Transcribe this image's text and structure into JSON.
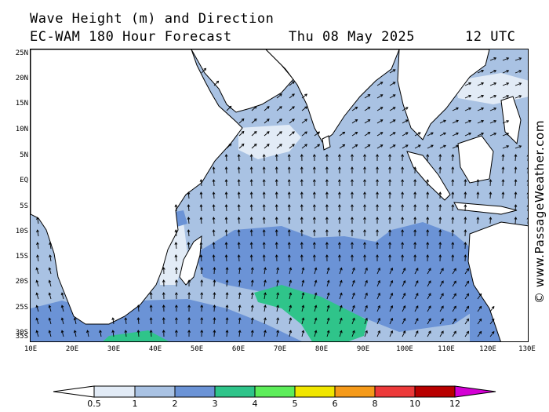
{
  "title": {
    "line1": "Wave Height (m) and Direction",
    "model": "EC-WAM 180 Hour Forecast",
    "date": "Thu 08 May 2025",
    "time": "12 UTC"
  },
  "credit": "© www.PassageWeather.com",
  "axes": {
    "lat_labels": [
      "25N",
      "20N",
      "15N",
      "10N",
      "5N",
      "EQ",
      "5S",
      "10S",
      "15S",
      "20S",
      "25S",
      "30S",
      "35S"
    ],
    "lon_labels": [
      "10E",
      "20E",
      "30E",
      "40E",
      "50E",
      "60E",
      "70E",
      "80E",
      "90E",
      "100E",
      "110E",
      "120E",
      "130E"
    ]
  },
  "colorbar": {
    "labels": [
      "0.5",
      "1",
      "2",
      "3",
      "4",
      "5",
      "6",
      "8",
      "10",
      "12"
    ],
    "colors": [
      "#e2ebf6",
      "#a9c2e3",
      "#6b93d6",
      "#2fc48a",
      "#5ded5a",
      "#f0e600",
      "#f59a1a",
      "#ec3a3a",
      "#b80000",
      "#d400d4"
    ]
  },
  "map_colors": {
    "ocean_low": "#e2ebf6",
    "ocean_1_2": "#a9c2e3",
    "ocean_2_3": "#6b93d6",
    "ocean_3_4": "#2fc48a",
    "land": "#ffffff"
  }
}
